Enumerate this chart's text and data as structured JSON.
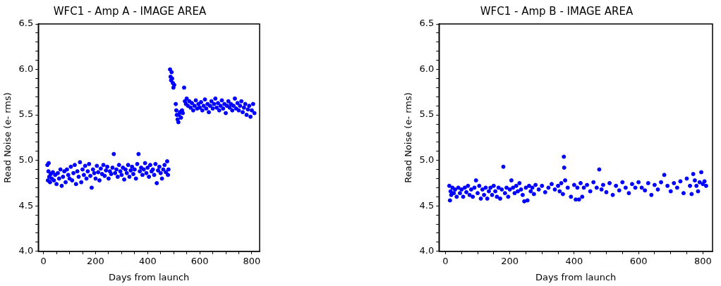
{
  "chart_data": [
    {
      "type": "scatter",
      "title": "WFC1 - Amp A - IMAGE AREA",
      "xlabel": "Days from launch",
      "ylabel": "Read Noise (e- rms)",
      "color": "#0000ff",
      "marker": "circle",
      "grid": false,
      "legend": false,
      "xlim": [
        -20,
        830
      ],
      "ylim": [
        4.0,
        6.5
      ],
      "xticks": [
        0,
        {
          "value": 50,
          "label": null
        },
        {
          "value": 100,
          "label": null
        },
        {
          "value": 150,
          "label": null
        },
        200,
        {
          "value": 250,
          "label": null
        },
        {
          "value": 300,
          "label": null
        },
        {
          "value": 350,
          "label": null
        },
        400,
        {
          "value": 450,
          "label": null
        },
        {
          "value": 500,
          "label": null
        },
        {
          "value": 550,
          "label": null
        },
        600,
        {
          "value": 650,
          "label": null
        },
        {
          "value": 700,
          "label": null
        },
        {
          "value": 750,
          "label": null
        },
        800
      ],
      "yticks": [
        {
          "value": 4.0,
          "label": "4.0"
        },
        {
          "value": 4.1,
          "label": null
        },
        {
          "value": 4.2,
          "label": null
        },
        {
          "value": 4.3,
          "label": null
        },
        {
          "value": 4.4,
          "label": null
        },
        4.5,
        {
          "value": 4.6,
          "label": null
        },
        {
          "value": 4.7,
          "label": null
        },
        {
          "value": 4.8,
          "label": null
        },
        {
          "value": 4.9,
          "label": null
        },
        {
          "value": 5.0,
          "label": "5.0"
        },
        {
          "value": 5.1,
          "label": null
        },
        {
          "value": 5.2,
          "label": null
        },
        {
          "value": 5.3,
          "label": null
        },
        {
          "value": 5.4,
          "label": null
        },
        5.5,
        {
          "value": 5.6,
          "label": null
        },
        {
          "value": 5.7,
          "label": null
        },
        {
          "value": 5.8,
          "label": null
        },
        {
          "value": 5.9,
          "label": null
        },
        {
          "value": 6.0,
          "label": "6.0"
        },
        {
          "value": 6.1,
          "label": null
        },
        {
          "value": 6.2,
          "label": null
        },
        {
          "value": 6.3,
          "label": null
        },
        {
          "value": 6.4,
          "label": null
        },
        6.5
      ],
      "x": [
        15,
        17,
        19,
        20,
        22,
        25,
        28,
        32,
        36,
        40,
        45,
        50,
        55,
        60,
        65,
        70,
        75,
        80,
        85,
        90,
        95,
        100,
        105,
        110,
        115,
        120,
        125,
        130,
        135,
        140,
        145,
        150,
        155,
        160,
        165,
        170,
        175,
        180,
        185,
        190,
        195,
        200,
        205,
        210,
        215,
        220,
        225,
        230,
        235,
        240,
        245,
        250,
        255,
        260,
        265,
        270,
        275,
        280,
        285,
        290,
        295,
        300,
        305,
        310,
        315,
        320,
        325,
        330,
        335,
        340,
        345,
        350,
        355,
        360,
        365,
        370,
        375,
        380,
        385,
        390,
        395,
        400,
        405,
        410,
        415,
        420,
        425,
        430,
        435,
        440,
        445,
        450,
        455,
        460,
        465,
        470,
        475,
        478,
        480,
        486,
        488,
        490,
        492,
        494,
        497,
        499,
        502,
        508,
        510,
        512,
        515,
        518,
        520,
        524,
        528,
        532,
        535,
        540,
        543,
        547,
        550,
        555,
        560,
        565,
        570,
        575,
        580,
        585,
        590,
        595,
        600,
        605,
        610,
        615,
        620,
        625,
        630,
        635,
        640,
        645,
        650,
        655,
        660,
        665,
        670,
        675,
        680,
        685,
        690,
        695,
        700,
        705,
        710,
        715,
        720,
        725,
        730,
        735,
        740,
        745,
        750,
        755,
        760,
        765,
        770,
        775,
        780,
        785,
        790,
        795,
        800,
        805,
        810
      ],
      "values": [
        4.95,
        4.78,
        4.88,
        4.97,
        4.82,
        4.76,
        4.85,
        4.8,
        4.87,
        4.78,
        4.84,
        4.74,
        4.86,
        4.8,
        4.9,
        4.72,
        4.82,
        4.88,
        4.76,
        4.9,
        4.84,
        4.8,
        4.93,
        4.78,
        4.86,
        4.95,
        4.74,
        4.88,
        4.82,
        4.98,
        4.76,
        4.9,
        4.84,
        4.94,
        4.8,
        4.88,
        4.96,
        4.83,
        4.7,
        4.9,
        4.86,
        4.8,
        4.94,
        4.87,
        4.78,
        4.91,
        4.85,
        4.95,
        4.83,
        4.89,
        4.93,
        4.8,
        4.88,
        4.85,
        4.92,
        5.07,
        4.86,
        4.9,
        4.82,
        4.95,
        4.88,
        4.84,
        4.92,
        4.79,
        4.9,
        4.86,
        4.95,
        4.82,
        4.89,
        4.93,
        4.85,
        4.9,
        4.8,
        4.96,
        5.07,
        4.88,
        4.92,
        4.84,
        4.9,
        4.97,
        4.86,
        4.92,
        4.82,
        4.95,
        4.88,
        4.9,
        4.84,
        4.96,
        4.75,
        4.89,
        4.93,
        4.86,
        4.8,
        4.9,
        4.95,
        4.87,
        4.99,
        4.84,
        4.9,
        6.0,
        5.92,
        5.88,
        5.97,
        5.9,
        5.85,
        5.8,
        5.83,
        5.62,
        5.55,
        5.5,
        5.45,
        5.42,
        5.5,
        5.53,
        5.47,
        5.55,
        5.52,
        5.8,
        5.65,
        5.62,
        5.68,
        5.6,
        5.65,
        5.58,
        5.63,
        5.55,
        5.6,
        5.66,
        5.57,
        5.62,
        5.58,
        5.64,
        5.55,
        5.6,
        5.67,
        5.57,
        5.62,
        5.53,
        5.6,
        5.65,
        5.57,
        5.62,
        5.68,
        5.58,
        5.63,
        5.55,
        5.6,
        5.66,
        5.57,
        5.62,
        5.52,
        5.6,
        5.65,
        5.58,
        5.62,
        5.55,
        5.6,
        5.68,
        5.57,
        5.63,
        5.55,
        5.6,
        5.65,
        5.53,
        5.58,
        5.62,
        5.5,
        5.56,
        5.6,
        5.48,
        5.55,
        5.62,
        5.52
      ]
    },
    {
      "type": "scatter",
      "title": "WFC1 - Amp B - IMAGE AREA",
      "xlabel": "Days from launch",
      "ylabel": "Read Noise (e- rms)",
      "color": "#0000ff",
      "marker": "circle",
      "grid": false,
      "legend": false,
      "xlim": [
        -20,
        830
      ],
      "ylim": [
        4.0,
        6.5
      ],
      "xticks": [
        0,
        {
          "value": 50,
          "label": null
        },
        {
          "value": 100,
          "label": null
        },
        {
          "value": 150,
          "label": null
        },
        200,
        {
          "value": 250,
          "label": null
        },
        {
          "value": 300,
          "label": null
        },
        {
          "value": 350,
          "label": null
        },
        400,
        {
          "value": 450,
          "label": null
        },
        {
          "value": 500,
          "label": null
        },
        {
          "value": 550,
          "label": null
        },
        600,
        {
          "value": 650,
          "label": null
        },
        {
          "value": 700,
          "label": null
        },
        {
          "value": 750,
          "label": null
        },
        800
      ],
      "yticks": [
        {
          "value": 4.0,
          "label": "4.0"
        },
        {
          "value": 4.1,
          "label": null
        },
        {
          "value": 4.2,
          "label": null
        },
        {
          "value": 4.3,
          "label": null
        },
        {
          "value": 4.4,
          "label": null
        },
        4.5,
        {
          "value": 4.6,
          "label": null
        },
        {
          "value": 4.7,
          "label": null
        },
        {
          "value": 4.8,
          "label": null
        },
        {
          "value": 4.9,
          "label": null
        },
        {
          "value": 5.0,
          "label": "5.0"
        },
        {
          "value": 5.1,
          "label": null
        },
        {
          "value": 5.2,
          "label": null
        },
        {
          "value": 5.3,
          "label": null
        },
        {
          "value": 5.4,
          "label": null
        },
        5.5,
        {
          "value": 5.6,
          "label": null
        },
        {
          "value": 5.7,
          "label": null
        },
        {
          "value": 5.8,
          "label": null
        },
        {
          "value": 5.9,
          "label": null
        },
        {
          "value": 6.0,
          "label": "6.0"
        },
        {
          "value": 6.1,
          "label": null
        },
        {
          "value": 6.2,
          "label": null
        },
        {
          "value": 6.3,
          "label": null
        },
        {
          "value": 6.4,
          "label": null
        },
        6.5
      ],
      "x": [
        12,
        14,
        16,
        18,
        22,
        26,
        30,
        35,
        40,
        45,
        50,
        55,
        60,
        65,
        70,
        75,
        80,
        85,
        90,
        95,
        100,
        105,
        110,
        115,
        120,
        125,
        130,
        135,
        140,
        145,
        150,
        155,
        160,
        165,
        170,
        175,
        180,
        185,
        190,
        195,
        200,
        205,
        210,
        215,
        220,
        225,
        230,
        235,
        240,
        245,
        250,
        255,
        260,
        265,
        270,
        275,
        280,
        290,
        300,
        310,
        320,
        330,
        340,
        350,
        355,
        360,
        365,
        368,
        369,
        372,
        380,
        390,
        400,
        405,
        410,
        415,
        420,
        425,
        430,
        440,
        450,
        460,
        470,
        478,
        485,
        490,
        500,
        510,
        520,
        530,
        540,
        550,
        560,
        570,
        580,
        590,
        600,
        610,
        620,
        630,
        640,
        650,
        660,
        670,
        680,
        690,
        700,
        710,
        720,
        730,
        740,
        750,
        760,
        765,
        770,
        775,
        780,
        785,
        790,
        795,
        800,
        805,
        810
      ],
      "values": [
        4.72,
        4.56,
        4.66,
        4.62,
        4.7,
        4.64,
        4.68,
        4.6,
        4.7,
        4.64,
        4.68,
        4.6,
        4.7,
        4.65,
        4.72,
        4.62,
        4.68,
        4.6,
        4.7,
        4.78,
        4.64,
        4.72,
        4.58,
        4.68,
        4.62,
        4.7,
        4.58,
        4.66,
        4.7,
        4.62,
        4.72,
        4.66,
        4.6,
        4.7,
        4.58,
        4.68,
        4.93,
        4.64,
        4.7,
        4.6,
        4.68,
        4.78,
        4.7,
        4.64,
        4.72,
        4.66,
        4.75,
        4.68,
        4.62,
        4.55,
        4.7,
        4.56,
        4.72,
        4.66,
        4.7,
        4.63,
        4.73,
        4.68,
        4.72,
        4.65,
        4.7,
        4.74,
        4.68,
        4.72,
        4.66,
        4.75,
        4.63,
        5.04,
        4.92,
        4.78,
        4.7,
        4.6,
        4.73,
        4.57,
        4.7,
        4.57,
        4.75,
        4.6,
        4.7,
        4.73,
        4.66,
        4.76,
        4.7,
        4.9,
        4.68,
        4.73,
        4.65,
        4.75,
        4.62,
        4.72,
        4.67,
        4.76,
        4.7,
        4.64,
        4.74,
        4.7,
        4.76,
        4.7,
        4.67,
        4.75,
        4.62,
        4.73,
        4.68,
        4.76,
        4.84,
        4.72,
        4.66,
        4.75,
        4.7,
        4.77,
        4.64,
        4.8,
        4.72,
        4.63,
        4.85,
        4.78,
        4.72,
        4.66,
        4.76,
        4.87,
        4.74,
        4.77,
        4.72
      ]
    }
  ]
}
